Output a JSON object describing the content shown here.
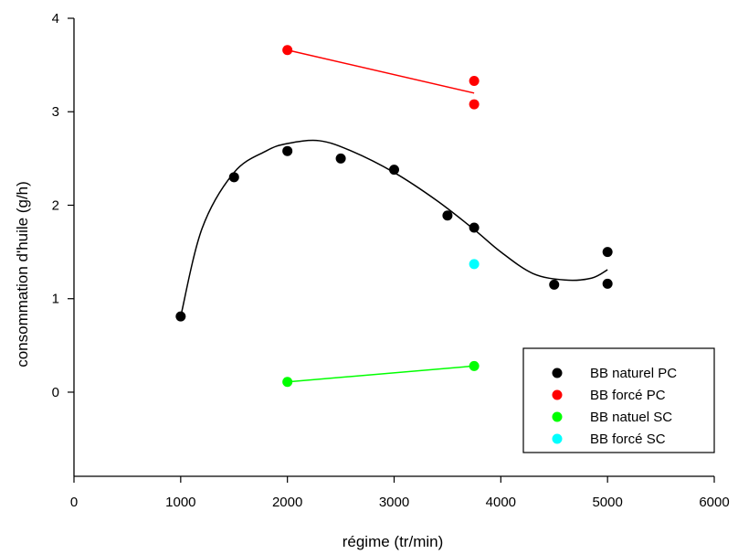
{
  "chart_data": {
    "type": "scatter",
    "title": "",
    "xlabel": "régime (tr/min)",
    "ylabel": "consommation d'huile (g/h)",
    "xlim": [
      0,
      6000
    ],
    "ylim": [
      -0.9,
      4
    ],
    "xticks": [
      "0",
      "1000",
      "2000",
      "3000",
      "4000",
      "5000",
      "6000"
    ],
    "yticks": [
      "0",
      "1",
      "2",
      "3",
      "4"
    ],
    "grid": false,
    "legend_position": "bottom-right",
    "series": [
      {
        "name": "BB naturel PC",
        "color": "#000000",
        "points": [
          [
            1000,
            0.81
          ],
          [
            1500,
            2.3
          ],
          [
            2000,
            2.58
          ],
          [
            2500,
            2.5
          ],
          [
            3000,
            2.38
          ],
          [
            3500,
            1.89
          ],
          [
            3750,
            1.76
          ],
          [
            4500,
            1.15
          ],
          [
            5000,
            1.5
          ],
          [
            5000,
            1.16
          ]
        ],
        "fit": "smooth",
        "fit_points": [
          [
            1000,
            0.81
          ],
          [
            1200,
            1.75
          ],
          [
            1500,
            2.35
          ],
          [
            1800,
            2.58
          ],
          [
            2000,
            2.66
          ],
          [
            2300,
            2.69
          ],
          [
            2600,
            2.58
          ],
          [
            3000,
            2.35
          ],
          [
            3400,
            2.05
          ],
          [
            3750,
            1.74
          ],
          [
            4000,
            1.5
          ],
          [
            4300,
            1.27
          ],
          [
            4600,
            1.2
          ],
          [
            4850,
            1.22
          ],
          [
            5000,
            1.31
          ]
        ]
      },
      {
        "name": "BB forcé PC",
        "color": "#ff0000",
        "points": [
          [
            2000,
            3.66
          ],
          [
            3750,
            3.33
          ],
          [
            3750,
            3.08
          ]
        ],
        "fit": "linear",
        "fit_points": [
          [
            2000,
            3.66
          ],
          [
            3750,
            3.2
          ]
        ]
      },
      {
        "name": "BB natuel SC",
        "color": "#00ff00",
        "points": [
          [
            2000,
            0.11
          ],
          [
            3750,
            0.28
          ]
        ],
        "fit": "linear",
        "fit_points": [
          [
            2000,
            0.11
          ],
          [
            3750,
            0.28
          ]
        ]
      },
      {
        "name": "BB forcé SC",
        "color": "#00ffff",
        "points": [
          [
            3750,
            1.37
          ]
        ]
      }
    ]
  }
}
